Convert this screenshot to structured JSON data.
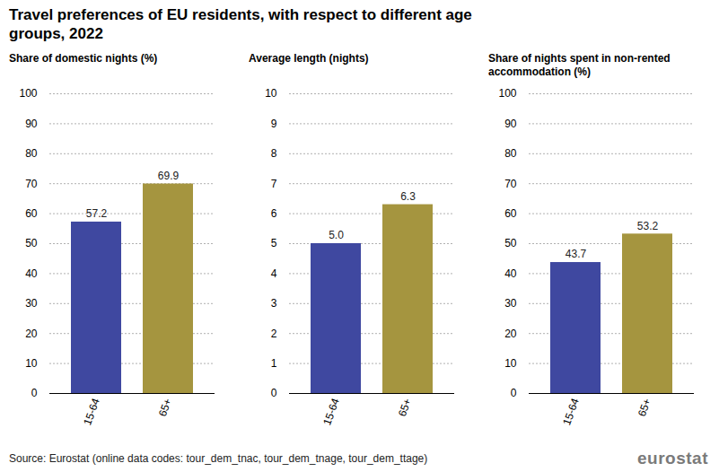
{
  "title": "Travel preferences of EU residents, with respect to different age groups, 2022",
  "caption": "Source: Eurostat (online data codes: tour_dem_tnac, tour_dem_tnage, tour_dem_ttage)",
  "logo": "eurostat",
  "chart_data": [
    {
      "type": "bar",
      "title": "Share of domestic nights (%)",
      "categories": [
        "15-64",
        "65+"
      ],
      "values": [
        57.2,
        69.9
      ],
      "colors": [
        "#3f48a0",
        "#a5953f"
      ],
      "ylim": [
        0,
        100
      ],
      "yticks": [
        0,
        10,
        20,
        30,
        40,
        50,
        60,
        70,
        80,
        90,
        100
      ],
      "grid": true,
      "data_labels": true
    },
    {
      "type": "bar",
      "title": "Average length (nights)",
      "categories": [
        "15-64",
        "65+"
      ],
      "values": [
        5.0,
        6.3
      ],
      "value_labels": [
        "5.0",
        "6.3"
      ],
      "colors": [
        "#3f48a0",
        "#a5953f"
      ],
      "ylim": [
        0,
        10
      ],
      "yticks": [
        0,
        1,
        2,
        3,
        4,
        5,
        6,
        7,
        8,
        9,
        10
      ],
      "grid": true,
      "data_labels": true
    },
    {
      "type": "bar",
      "title": "Share of nights spent in non-rented accommodation (%)",
      "categories": [
        "15-64",
        "65+"
      ],
      "values": [
        43.7,
        53.2
      ],
      "colors": [
        "#3f48a0",
        "#a5953f"
      ],
      "ylim": [
        0,
        100
      ],
      "yticks": [
        0,
        10,
        20,
        30,
        40,
        50,
        60,
        70,
        80,
        90,
        100
      ],
      "grid": true,
      "data_labels": true
    }
  ]
}
